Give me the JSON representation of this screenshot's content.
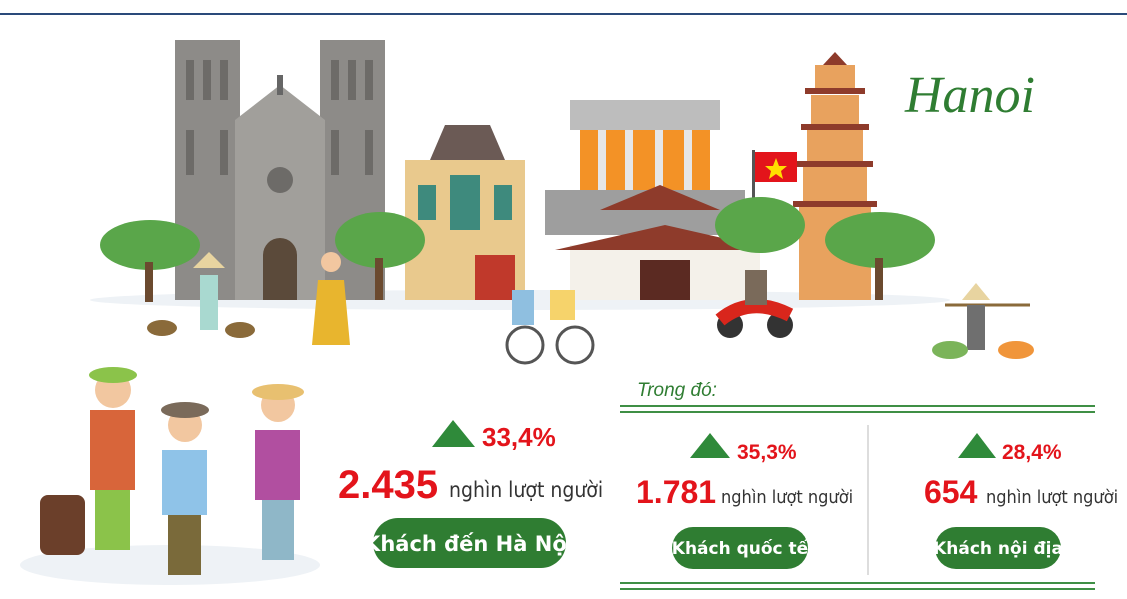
{
  "header": {
    "title": "Hanoi"
  },
  "total": {
    "change": "33,4%",
    "value": "2.435",
    "unit": "nghìn lượt người",
    "label": "Khách đến Hà Nội"
  },
  "breakdown": {
    "title": "Trong đó:",
    "items": [
      {
        "change": "35,3%",
        "value": "1.781",
        "unit": "nghìn lượt người",
        "label": "Khách quốc tế"
      },
      {
        "change": "28,4%",
        "value": "654",
        "unit": "nghìn lượt người",
        "label": "Khách nội địa"
      }
    ]
  }
}
